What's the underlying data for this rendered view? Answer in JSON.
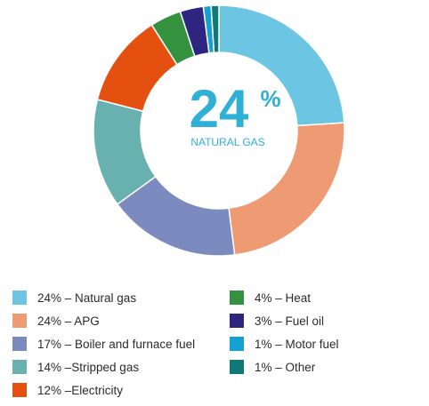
{
  "chart_data": {
    "type": "pie",
    "donut": true,
    "center": {
      "value_text": "24",
      "value_unit": "%",
      "label": "NATURAL GAS"
    },
    "slices": [
      {
        "label": "24% – Natural gas",
        "value": 24,
        "color": "#6cc5e2"
      },
      {
        "label": "24% – APG",
        "value": 24,
        "color": "#ee9a72"
      },
      {
        "label": "17% –  Boiler and furnace fuel",
        "value": 17,
        "color": "#7b8abf"
      },
      {
        "label": "14% –Stripped gas",
        "value": 14,
        "color": "#69b1b1"
      },
      {
        "label": "12% –Electricity",
        "value": 12,
        "color": "#e4500f"
      },
      {
        "label": "4% – Heat",
        "value": 4,
        "color": "#34923f"
      },
      {
        "label": "3% – Fuel oil",
        "value": 3,
        "color": "#2e2580"
      },
      {
        "label": "1% –  Motor fuel",
        "value": 1,
        "color": "#15a0d2"
      },
      {
        "label": "1% –  Other",
        "value": 1,
        "color": "#0f7878"
      }
    ],
    "legend_order": [
      [
        0,
        1,
        2,
        3,
        4
      ],
      [
        5,
        6,
        7,
        8
      ]
    ]
  }
}
